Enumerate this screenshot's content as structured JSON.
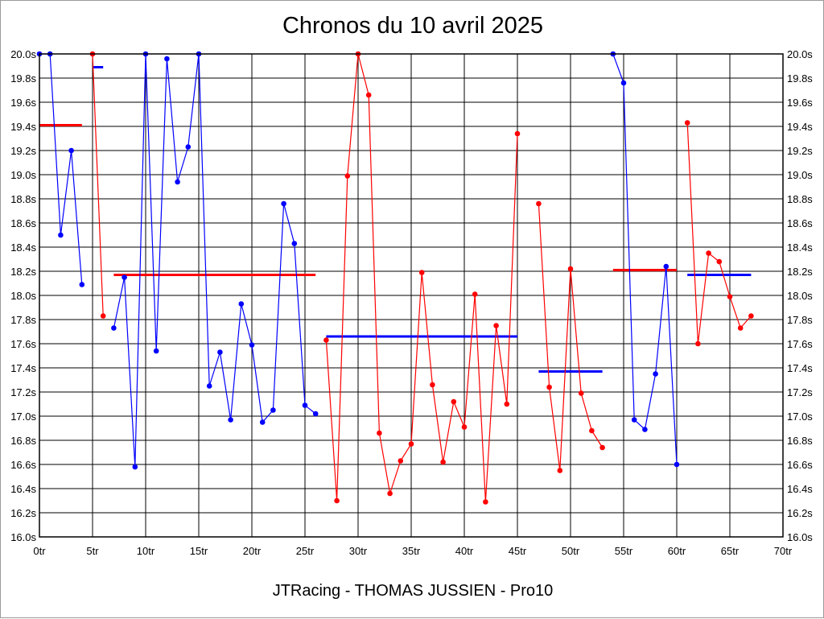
{
  "chart_data": {
    "type": "line",
    "title": "Chronos du 10 avril 2025",
    "footer": "JTRacing - THOMAS JUSSIEN - Pro10",
    "xlim": [
      0,
      70
    ],
    "ylim": [
      16.0,
      20.0
    ],
    "x_tick_step": 5,
    "y_tick_step": 0.2,
    "x_tick_suffix": "tr",
    "y_tick_suffix": "s",
    "y_axis_sides": [
      "left",
      "right"
    ],
    "grid": true,
    "legend": "none",
    "series": [
      {
        "color": "#0000ff",
        "x": [
          0,
          1,
          2,
          3,
          4
        ],
        "values": [
          20.0,
          20.0,
          18.5,
          19.2,
          18.09
        ]
      },
      {
        "color": "#ff0000",
        "x": [
          5,
          6
        ],
        "values": [
          20.0,
          17.83
        ]
      },
      {
        "color": "#0000ff",
        "x": [
          7,
          8,
          9,
          10,
          11,
          12,
          13,
          14,
          15,
          16,
          17,
          18,
          19,
          20,
          21,
          22,
          23,
          24,
          25,
          26
        ],
        "values": [
          17.73,
          18.15,
          16.58,
          20.0,
          17.54,
          19.96,
          18.94,
          19.23,
          20.0,
          17.25,
          17.53,
          16.97,
          17.93,
          17.59,
          16.95,
          17.05,
          18.76,
          18.43,
          17.09,
          17.02
        ]
      },
      {
        "color": "#ff0000",
        "x": [
          27,
          28,
          29,
          30,
          31,
          32,
          33,
          34,
          35,
          36,
          37,
          38,
          39,
          40,
          41,
          42,
          43,
          44,
          45
        ],
        "values": [
          17.63,
          16.3,
          18.99,
          20.0,
          19.66,
          16.86,
          16.36,
          16.63,
          16.77,
          18.19,
          17.26,
          16.62,
          17.12,
          16.91,
          18.01,
          16.29,
          17.75,
          17.1,
          19.34
        ]
      },
      {
        "color": "#ff0000",
        "x": [
          47,
          48,
          49,
          50,
          51,
          52,
          53
        ],
        "values": [
          18.76,
          17.24,
          16.55,
          18.22,
          17.19,
          16.88,
          16.74
        ]
      },
      {
        "color": "#0000ff",
        "x": [
          54,
          55,
          56,
          57,
          58,
          59,
          60
        ],
        "values": [
          20.0,
          19.76,
          16.97,
          16.89,
          17.35,
          18.24,
          16.6
        ]
      },
      {
        "color": "#ff0000",
        "x": [
          61,
          62,
          63,
          64,
          65,
          66,
          67
        ],
        "values": [
          19.43,
          17.6,
          18.35,
          18.28,
          17.99,
          17.73,
          17.83
        ]
      }
    ],
    "averages": [
      {
        "color": "#ff0000",
        "x": [
          0,
          4
        ],
        "value": 19.41
      },
      {
        "color": "#0000ff",
        "x": [
          5,
          6
        ],
        "value": 19.89
      },
      {
        "color": "#ff0000",
        "x": [
          7,
          26
        ],
        "value": 18.17
      },
      {
        "color": "#0000ff",
        "x": [
          27,
          45
        ],
        "value": 17.66
      },
      {
        "color": "#0000ff",
        "x": [
          47,
          53
        ],
        "value": 17.37
      },
      {
        "color": "#ff0000",
        "x": [
          54,
          60
        ],
        "value": 18.21
      },
      {
        "color": "#0000ff",
        "x": [
          61,
          67
        ],
        "value": 18.17
      }
    ]
  }
}
